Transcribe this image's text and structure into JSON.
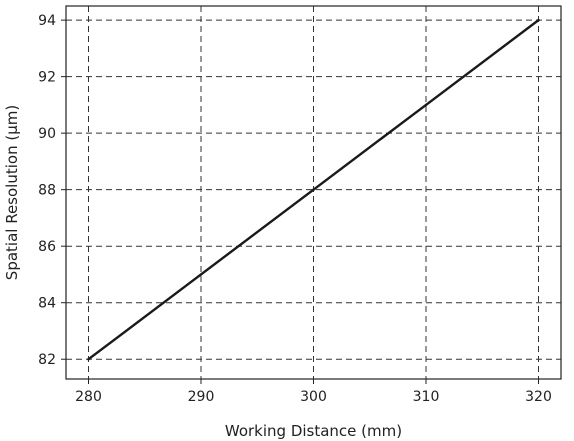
{
  "chart_data": {
    "type": "line",
    "title": "",
    "xlabel": "Working Distance (mm)",
    "ylabel": "Spatial Resolution (µm)",
    "x": [
      280,
      290,
      300,
      310,
      320
    ],
    "series": [
      {
        "values": [
          82,
          85,
          88,
          91,
          94
        ],
        "color": "#1a1a1a"
      }
    ],
    "xlim": [
      278,
      322
    ],
    "ylim": [
      81.3,
      94.5
    ],
    "xticks": [
      280,
      290,
      300,
      310,
      320
    ],
    "yticks": [
      82,
      84,
      86,
      88,
      90,
      92,
      94
    ],
    "grid": true,
    "grid_style": "dashed",
    "legend": "none"
  }
}
